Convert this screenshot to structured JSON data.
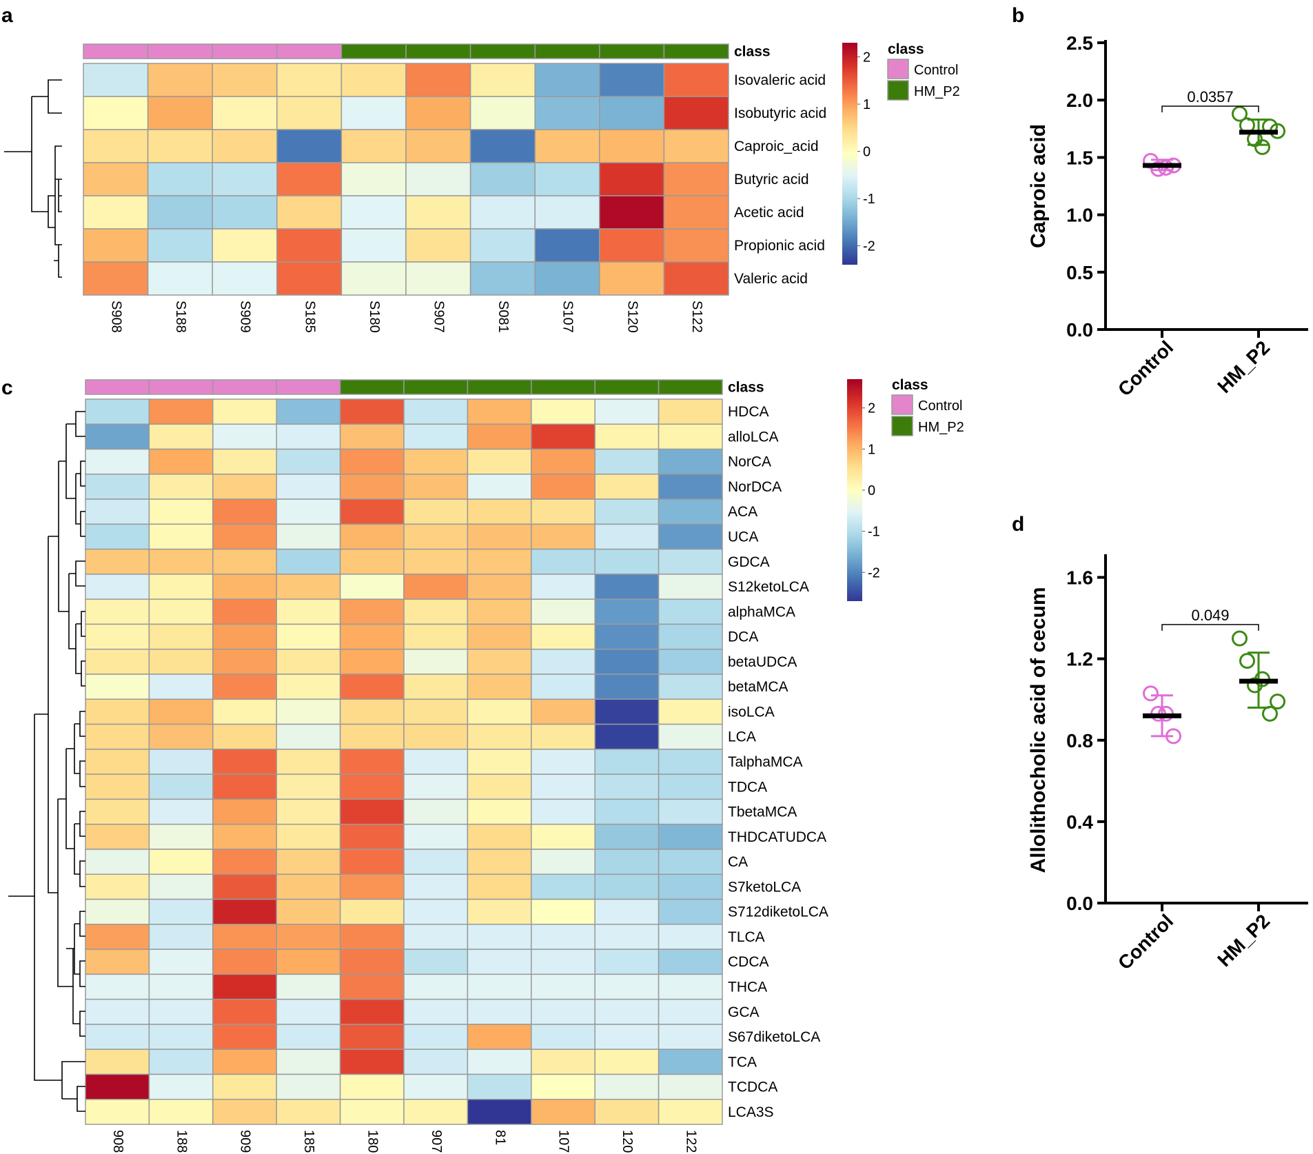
{
  "panels": {
    "a": "a",
    "b": "b",
    "c": "c",
    "d": "d"
  },
  "colors": {
    "control": "#e485cc",
    "hm_p2": "#3c7d0a",
    "control_point": "#e06ed6",
    "hm_p2_point": "#3c8a14",
    "scale": [
      "#313695",
      "#4575b4",
      "#74add1",
      "#abd9e9",
      "#e0f3f8",
      "#ffffbf",
      "#fee090",
      "#fdae61",
      "#f46d43",
      "#d73027",
      "#a50026"
    ]
  },
  "chart_data": [
    {
      "id": "a",
      "type": "heatmap",
      "title": "",
      "annotation_label": "class",
      "legend_title": "class",
      "legend_items": [
        "Control",
        "HM_P2"
      ],
      "colorbar_ticks": [
        2,
        1,
        0,
        -1,
        -2
      ],
      "colorbar_range": [
        -2.4,
        2.3
      ],
      "columns": [
        "S908",
        "S188",
        "S909",
        "S185",
        "S180",
        "S907",
        "S081",
        "S107",
        "S120",
        "S122"
      ],
      "column_classes": [
        "Control",
        "Control",
        "Control",
        "Control",
        "HM_P2",
        "HM_P2",
        "HM_P2",
        "HM_P2",
        "HM_P2",
        "HM_P2"
      ],
      "rows": [
        "Isovaleric acid",
        "Isobutyric acid",
        "Caproic_acid",
        "Butyric acid",
        "Acetic acid",
        "Propionic acid",
        "Valeric acid"
      ],
      "values": [
        [
          -0.7,
          0.7,
          0.6,
          0.3,
          0.4,
          1.2,
          0.2,
          -1.4,
          -1.8,
          1.4
        ],
        [
          0.0,
          0.9,
          0.1,
          0.3,
          -0.5,
          0.9,
          -0.2,
          -1.3,
          -1.4,
          1.8
        ],
        [
          0.4,
          0.4,
          0.5,
          -1.9,
          0.5,
          0.7,
          -1.9,
          0.7,
          0.8,
          0.7
        ],
        [
          0.7,
          -0.9,
          -0.8,
          1.3,
          -0.3,
          -0.4,
          -1.1,
          -0.9,
          1.8,
          1.1
        ],
        [
          0.1,
          -1.1,
          -1.0,
          0.5,
          -0.5,
          0.2,
          -0.6,
          -0.6,
          2.2,
          1.1
        ],
        [
          0.8,
          -0.9,
          0.1,
          1.4,
          -0.5,
          0.4,
          -0.8,
          -1.9,
          1.4,
          1.1
        ],
        [
          1.1,
          -0.5,
          -0.5,
          1.4,
          -0.3,
          -0.3,
          -1.2,
          -1.4,
          0.8,
          1.5
        ]
      ]
    },
    {
      "id": "b",
      "type": "scatter",
      "title": "",
      "xlabel": "",
      "ylabel": "Caproic acid",
      "categories": [
        "Control",
        "HM_P2"
      ],
      "ylim": [
        0,
        2.5
      ],
      "yticks": [
        "0.0",
        "0.5",
        "1.0",
        "1.5",
        "2.0",
        "2.5"
      ],
      "points": [
        [
          1.47,
          1.4,
          1.41,
          1.43
        ],
        [
          1.88,
          1.78,
          1.66,
          1.59,
          1.77,
          1.73
        ]
      ],
      "means": [
        1.43,
        1.72
      ],
      "error": [
        [
          1.39,
          1.48
        ],
        [
          1.61,
          1.83
        ]
      ],
      "significance": "0.0357"
    },
    {
      "id": "c",
      "type": "heatmap",
      "title": "",
      "annotation_label": "class",
      "legend_title": "class",
      "legend_items": [
        "Control",
        "HM_P2"
      ],
      "colorbar_ticks": [
        2,
        1,
        0,
        -1,
        -2
      ],
      "colorbar_range": [
        -2.7,
        2.7
      ],
      "columns": [
        "908",
        "188",
        "909",
        "185",
        "180",
        "907",
        "81",
        "107",
        "120",
        "122"
      ],
      "column_classes": [
        "Control",
        "Control",
        "Control",
        "Control",
        "HM_P2",
        "HM_P2",
        "HM_P2",
        "HM_P2",
        "HM_P2",
        "HM_P2"
      ],
      "rows": [
        "HDCA",
        "alloLCA",
        "NorCA",
        "NorDCA",
        "ACA",
        "UCA",
        "GDCA",
        "S12ketoLCA",
        "alphaMCA",
        "DCA",
        "betaUDCA",
        "betaMCA",
        "isoLCA",
        "LCA",
        "TalphaMCA",
        "TDCA",
        "TbetaMCA",
        "THDCATUDCA",
        "CA",
        "S7ketoLCA",
        "S712diketoLCA",
        "TLCA",
        "CDCA",
        "THCA",
        "GCA",
        "S67diketoLCA",
        "TCA",
        "TCDCA",
        "LCA3S"
      ],
      "values": [
        [
          -1.0,
          1.3,
          0.2,
          -1.4,
          1.8,
          -0.8,
          1.0,
          0.1,
          -0.5,
          0.5
        ],
        [
          -1.7,
          0.3,
          -0.5,
          -0.6,
          0.9,
          -0.7,
          1.2,
          2.0,
          0.2,
          0.2
        ],
        [
          -0.5,
          1.1,
          0.3,
          -0.9,
          1.3,
          0.8,
          0.4,
          1.2,
          -0.9,
          -1.6
        ],
        [
          -0.9,
          0.3,
          0.7,
          -0.6,
          1.2,
          0.9,
          -0.5,
          1.3,
          0.4,
          -1.9
        ],
        [
          -0.7,
          0.1,
          1.4,
          -0.5,
          1.8,
          0.5,
          0.6,
          0.5,
          -0.9,
          -1.5
        ],
        [
          -1.0,
          0.1,
          1.3,
          -0.4,
          1.0,
          0.7,
          0.9,
          0.9,
          -0.7,
          -1.8
        ],
        [
          0.8,
          0.8,
          0.8,
          -1.1,
          0.8,
          0.7,
          0.8,
          -1.0,
          -1.0,
          -0.9
        ],
        [
          -0.6,
          0.2,
          1.0,
          0.8,
          -0.1,
          1.3,
          0.9,
          -0.6,
          -2.0,
          -0.4
        ],
        [
          0.2,
          0.2,
          1.4,
          0.2,
          1.2,
          0.4,
          0.8,
          -0.3,
          -1.8,
          -1.0
        ],
        [
          0.2,
          0.4,
          1.2,
          0.1,
          1.1,
          0.4,
          0.9,
          0.2,
          -1.9,
          -1.1
        ],
        [
          0.4,
          0.5,
          1.2,
          0.4,
          1.1,
          -0.3,
          0.7,
          -0.7,
          -2.0,
          -1.2
        ],
        [
          -0.1,
          -0.6,
          1.4,
          0.2,
          1.6,
          0.4,
          0.8,
          -0.7,
          -2.0,
          -0.9
        ],
        [
          0.6,
          1.0,
          0.2,
          -0.2,
          0.6,
          0.5,
          0.2,
          0.9,
          -2.6,
          0.2
        ],
        [
          0.6,
          0.9,
          0.6,
          -0.4,
          0.6,
          0.6,
          0.4,
          0.4,
          -2.6,
          -0.4
        ],
        [
          0.6,
          -0.7,
          1.7,
          0.4,
          1.6,
          -0.6,
          0.2,
          -0.6,
          -1.0,
          -1.0
        ],
        [
          0.6,
          -0.9,
          1.7,
          0.3,
          1.6,
          -0.5,
          0.4,
          -0.6,
          -0.9,
          -1.0
        ],
        [
          0.5,
          -0.6,
          1.2,
          0.3,
          2.0,
          -0.4,
          0.1,
          -0.6,
          -1.0,
          -0.8
        ],
        [
          0.7,
          -0.3,
          1.0,
          0.4,
          1.7,
          -0.5,
          0.6,
          0.1,
          -1.3,
          -1.5
        ],
        [
          -0.4,
          0.1,
          1.4,
          0.7,
          1.6,
          -0.7,
          0.6,
          -0.4,
          -1.1,
          -1.1
        ],
        [
          0.3,
          -0.4,
          1.8,
          0.8,
          1.3,
          -0.6,
          0.6,
          -1.0,
          -1.1,
          -1.2
        ],
        [
          -0.3,
          -0.7,
          2.3,
          0.8,
          0.4,
          -0.6,
          0.3,
          0.0,
          -0.6,
          -1.2
        ],
        [
          1.2,
          -0.7,
          1.3,
          1.2,
          1.4,
          -0.6,
          -0.6,
          -0.6,
          -0.6,
          -0.6
        ],
        [
          0.9,
          -0.5,
          1.4,
          1.1,
          1.5,
          -0.9,
          -0.6,
          -0.6,
          -0.8,
          -1.2
        ],
        [
          -0.5,
          -0.5,
          2.2,
          -0.4,
          1.5,
          -0.5,
          -0.5,
          -0.5,
          -0.5,
          -0.5
        ],
        [
          -0.6,
          -0.6,
          1.7,
          -0.6,
          2.0,
          -0.6,
          -0.6,
          -0.6,
          -0.6,
          -0.6
        ],
        [
          -0.7,
          -0.7,
          1.6,
          -0.7,
          1.8,
          -0.7,
          1.1,
          -0.7,
          -0.6,
          -0.6
        ],
        [
          0.5,
          -0.8,
          1.1,
          -0.4,
          2.0,
          -0.7,
          -0.5,
          0.3,
          0.2,
          -1.4
        ],
        [
          2.6,
          -0.5,
          0.4,
          -0.4,
          0.1,
          -0.5,
          -0.9,
          0.0,
          -0.4,
          -0.4
        ],
        [
          0.1,
          0.1,
          0.7,
          0.4,
          0.1,
          0.2,
          -2.7,
          1.0,
          0.5,
          0.2
        ]
      ]
    },
    {
      "id": "d",
      "type": "scatter",
      "title": "",
      "xlabel": "",
      "ylabel": "Allolithocholic acid of cecum",
      "categories": [
        "Control",
        "HM_P2"
      ],
      "ylim": [
        0,
        1.7
      ],
      "yticks": [
        "0.0",
        "0.4",
        "0.8",
        "1.2",
        "1.6"
      ],
      "points": [
        [
          1.03,
          0.93,
          0.93,
          0.82
        ],
        [
          1.3,
          1.19,
          1.07,
          1.1,
          0.93,
          0.99
        ]
      ],
      "means": [
        0.92,
        1.09
      ],
      "error": [
        [
          0.82,
          1.02
        ],
        [
          0.96,
          1.23
        ]
      ],
      "significance": "0.049"
    }
  ]
}
